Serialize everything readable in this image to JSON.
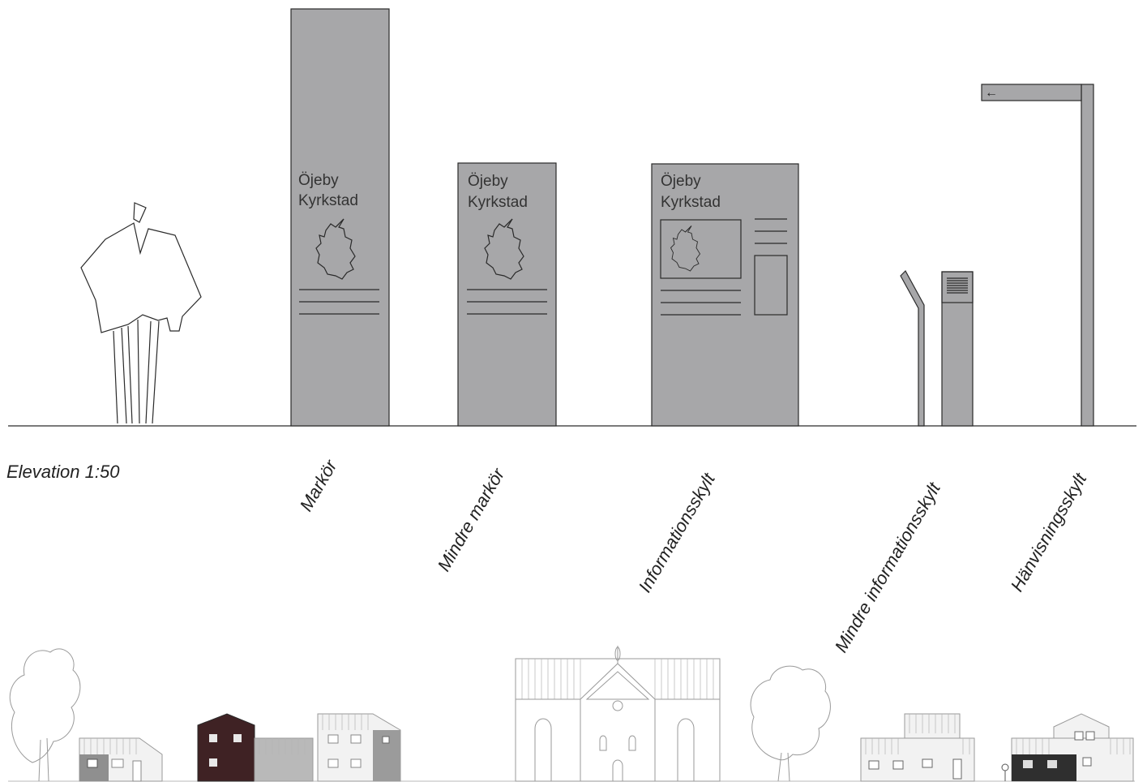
{
  "elevation": {
    "label": "Elevation 1:50"
  },
  "signs": [
    {
      "id": "markor",
      "type_label": "Markör",
      "title_line1": "Öjeby",
      "title_line2": "Kyrkstad"
    },
    {
      "id": "mindre-markor",
      "type_label": "Mindre markör",
      "title_line1": "Öjeby",
      "title_line2": "Kyrkstad"
    },
    {
      "id": "informationsskylt",
      "type_label": "Informationsskylt",
      "title_line1": "Öjeby",
      "title_line2": "Kyrkstad"
    },
    {
      "id": "mindre-informationsskylt",
      "type_label": "Mindre informationsskylt"
    },
    {
      "id": "hanvisningsskylt",
      "type_label": "Hänvisningsskylt",
      "arrow": "←"
    }
  ],
  "colors": {
    "sign_fill": "#a7a7a9",
    "outline": "#2a2a2a",
    "dark_house": "#3f2224",
    "ghost_line": "#9a9a9a"
  },
  "icons": [
    "person-silhouette-icon",
    "town-map-outline-icon",
    "arrow-left-icon",
    "tree-icon",
    "house-icon",
    "church-icon"
  ]
}
